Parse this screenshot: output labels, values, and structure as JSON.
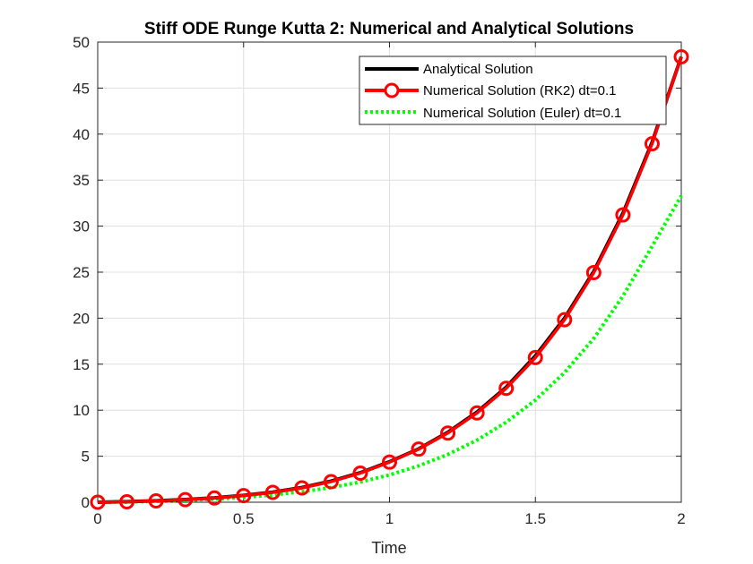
{
  "chart_data": {
    "type": "line",
    "title": "Stiff ODE Runge Kutta 2: Numerical and Analytical Solutions",
    "xlabel": "Time",
    "ylabel": "",
    "xlim": [
      0,
      2
    ],
    "ylim": [
      0,
      50
    ],
    "xticks": [
      0,
      0.5,
      1,
      1.5,
      2
    ],
    "xtick_labels": [
      "0",
      "0.5",
      "1",
      "1.5",
      "2"
    ],
    "yticks": [
      0,
      5,
      10,
      15,
      20,
      25,
      30,
      35,
      40,
      45,
      50
    ],
    "ytick_labels": [
      "0",
      "5",
      "10",
      "15",
      "20",
      "25",
      "30",
      "35",
      "40",
      "45",
      "50"
    ],
    "grid": true,
    "legend_position": "top-right",
    "series": [
      {
        "name": "Analytical Solution",
        "color": "#000000",
        "style": "solid",
        "x": [
          0,
          0.1,
          0.2,
          0.3,
          0.4,
          0.5,
          0.6,
          0.7,
          0.8,
          0.9,
          1.0,
          1.1,
          1.2,
          1.3,
          1.4,
          1.5,
          1.6,
          1.7,
          1.8,
          1.9,
          2.0
        ],
        "values": [
          0.0,
          0.06,
          0.16,
          0.29,
          0.48,
          0.74,
          1.1,
          1.6,
          2.3,
          3.2,
          4.4,
          5.8,
          7.6,
          9.8,
          12.5,
          15.9,
          20.0,
          25.1,
          31.4,
          39.1,
          48.4
        ]
      },
      {
        "name": "Numerical Solution (RK2) dt=0.1",
        "color": "#ff0000",
        "style": "solid-circle-markers",
        "x": [
          0,
          0.1,
          0.2,
          0.3,
          0.4,
          0.5,
          0.6,
          0.7,
          0.8,
          0.9,
          1.0,
          1.1,
          1.2,
          1.3,
          1.4,
          1.5,
          1.6,
          1.7,
          1.8,
          1.9,
          2.0
        ],
        "values": [
          0.0,
          0.05,
          0.15,
          0.28,
          0.46,
          0.72,
          1.07,
          1.56,
          2.24,
          3.16,
          4.36,
          5.77,
          7.52,
          9.7,
          12.38,
          15.72,
          19.83,
          24.95,
          31.22,
          38.95,
          48.4
        ]
      },
      {
        "name": "Numerical Solution (Euler) dt=0.1",
        "color": "#00ff00",
        "style": "dotted",
        "x": [
          0,
          0.1,
          0.2,
          0.3,
          0.4,
          0.5,
          0.6,
          0.7,
          0.8,
          0.9,
          1.0,
          1.1,
          1.2,
          1.3,
          1.4,
          1.5,
          1.6,
          1.7,
          1.8,
          1.9,
          2.0
        ],
        "values": [
          0.0,
          0.03,
          0.1,
          0.2,
          0.34,
          0.53,
          0.79,
          1.14,
          1.6,
          2.2,
          2.97,
          3.95,
          5.19,
          6.75,
          8.7,
          11.1,
          14.1,
          17.8,
          22.4,
          27.8,
          33.3
        ]
      }
    ]
  }
}
